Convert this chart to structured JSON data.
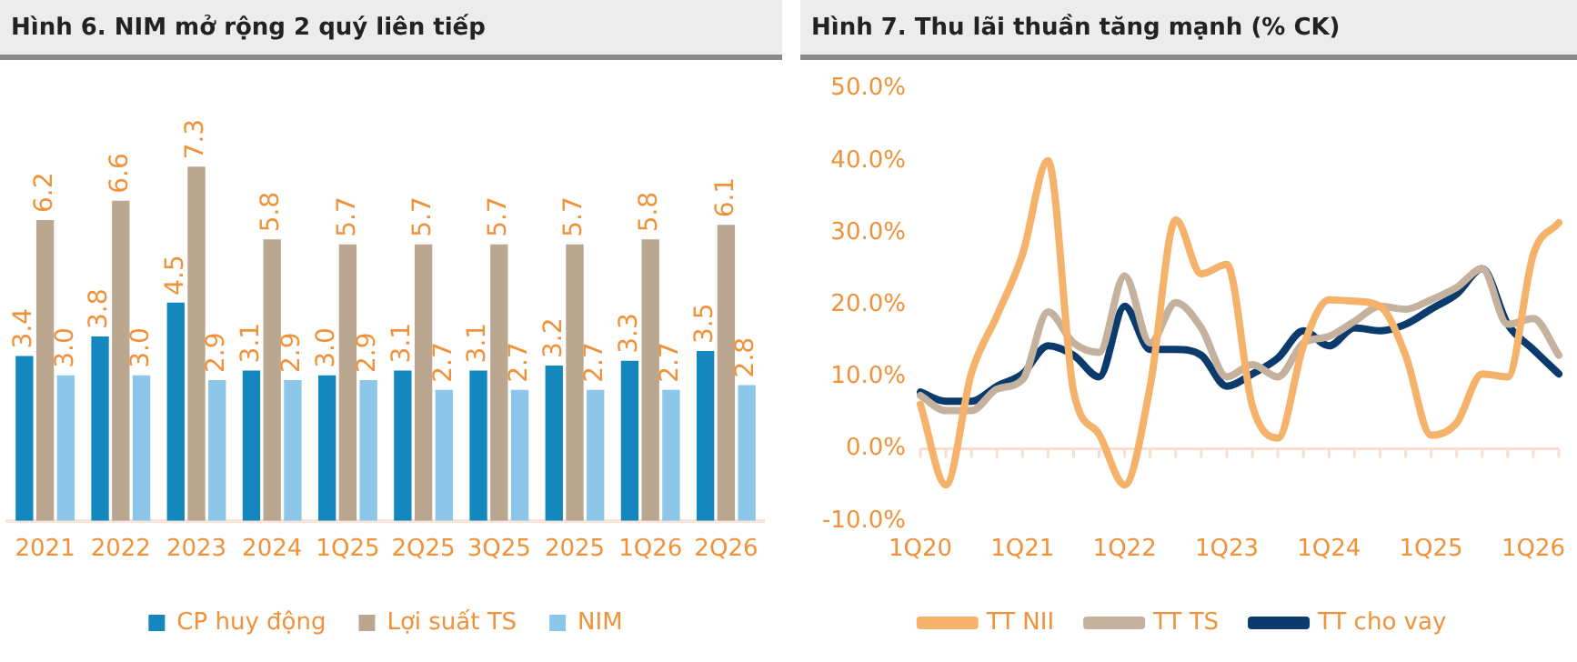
{
  "chart_data": [
    {
      "type": "bar",
      "title": "Hình 6. NIM mở rộng 2 quý liên tiếp",
      "categories": [
        "2021",
        "2022",
        "2023",
        "2024",
        "1Q25",
        "2Q25",
        "3Q25",
        "2025",
        "1Q26",
        "2Q26"
      ],
      "series": [
        {
          "name": "CP huy động",
          "color": "#1487bf",
          "values": [
            3.4,
            3.8,
            4.5,
            3.1,
            3.0,
            3.1,
            3.1,
            3.2,
            3.3,
            3.5
          ],
          "value_labels": [
            "3.4",
            "3.8",
            "4.5",
            "3.1",
            "3.0",
            "3.1",
            "3.1",
            "3.2",
            "3.3",
            "3.5"
          ]
        },
        {
          "name": "Lợi suất TS",
          "color": "#bba68f",
          "values": [
            6.2,
            6.6,
            7.3,
            5.8,
            5.7,
            5.7,
            5.7,
            5.7,
            5.8,
            6.1
          ],
          "value_labels": [
            "6.2",
            "6.6",
            "7.3",
            "5.8",
            "5.7",
            "5.7",
            "5.7",
            "5.7",
            "5.8",
            "6.1"
          ]
        },
        {
          "name": "NIM",
          "color": "#8cc6e8",
          "values": [
            3.0,
            3.0,
            2.9,
            2.9,
            2.9,
            2.7,
            2.7,
            2.7,
            2.7,
            2.8
          ],
          "value_labels": [
            "3.0",
            "3.0",
            "2.9",
            "2.9",
            "2.9",
            "2.7",
            "2.7",
            "2.7",
            "2.7",
            "2.8"
          ]
        }
      ],
      "legend": "bottom",
      "grid": false
    },
    {
      "type": "line",
      "title": "Hình 7. Thu lãi thuần tăng mạnh (% CK)",
      "categories": [
        "1Q20",
        null,
        null,
        null,
        "1Q21",
        null,
        null,
        null,
        "1Q22",
        null,
        null,
        null,
        "1Q23",
        null,
        null,
        null,
        "1Q24",
        null,
        null,
        null,
        "1Q25",
        null,
        null,
        null,
        "1Q26",
        null
      ],
      "series": [
        {
          "name": "TT NII",
          "color": "#f4b26b",
          "values": [
            6.2,
            -5,
            10.5,
            18.5,
            27,
            40,
            8,
            2,
            -5,
            8.7,
            31.8,
            24.3,
            25.6,
            6,
            1.5,
            14.3,
            20.7,
            20.5,
            19.8,
            13,
            1.9,
            3.6,
            10.4,
            10,
            27,
            31.4
          ]
        },
        {
          "name": "TT TS",
          "color": "#c4b19e",
          "values": [
            7.4,
            5.3,
            5.3,
            8.3,
            9.6,
            19,
            14.7,
            13.4,
            24,
            14.7,
            20.3,
            16.8,
            10,
            11.7,
            10,
            14.7,
            15.6,
            17.7,
            19.8,
            19.4,
            20.7,
            22.4,
            25,
            17.3,
            18.1,
            13
          ]
        },
        {
          "name": "TT cho vay",
          "color": "#0b3a6c",
          "values": [
            7.9,
            6.6,
            6.6,
            8.7,
            10.4,
            14.3,
            13,
            10,
            19.8,
            13.8,
            13.8,
            13,
            8.7,
            10.4,
            12.6,
            16.4,
            14.3,
            16.8,
            16.4,
            17.3,
            19.4,
            21.5,
            25,
            17.3,
            13.8,
            10.4
          ]
        }
      ],
      "ylim": [
        -10,
        50
      ],
      "yticks": [
        {
          "value": -10,
          "label": "-10.0%"
        },
        {
          "value": 0,
          "label": "0.0%"
        },
        {
          "value": 10,
          "label": "10.0%"
        },
        {
          "value": 20,
          "label": "20.0%"
        },
        {
          "value": 30,
          "label": "30.0%"
        },
        {
          "value": 40,
          "label": "40.0%"
        },
        {
          "value": 50,
          "label": "50.0%"
        }
      ],
      "ref_lines": [
        {
          "axis": "y",
          "value": 0,
          "color": "#f8ddd0"
        }
      ],
      "legend": "bottom",
      "grid": false,
      "marker": "none"
    }
  ]
}
